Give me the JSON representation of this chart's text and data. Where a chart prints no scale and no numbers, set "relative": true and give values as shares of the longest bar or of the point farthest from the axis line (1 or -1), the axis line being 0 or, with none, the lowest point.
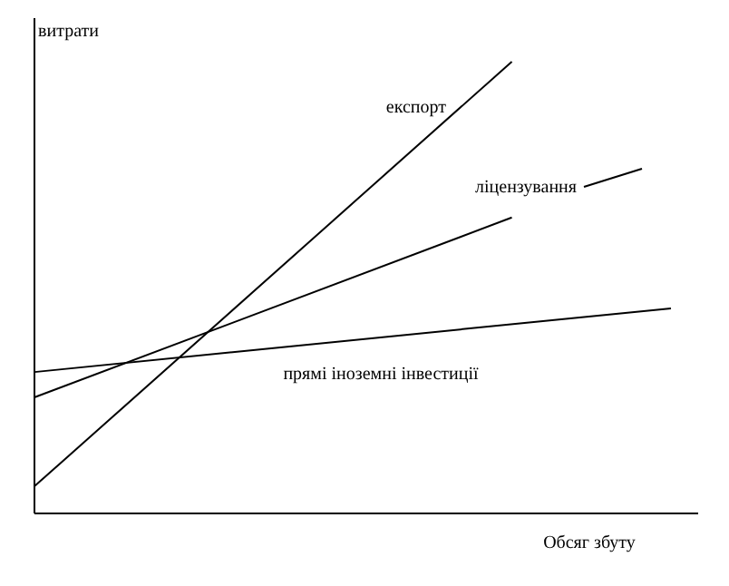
{
  "chart_data": {
    "type": "line",
    "relative": true,
    "ylabel": "витрати",
    "xlabel": "Обсяг збуту",
    "line_style": "solid",
    "marker": "none",
    "categories": [
      null,
      null,
      null,
      null,
      null,
      null,
      null,
      null,
      null,
      null,
      null,
      null,
      null,
      null,
      null,
      null,
      null,
      null,
      null,
      null,
      null,
      null,
      null,
      null,
      null
    ],
    "series": [
      {
        "name": "експорт",
        "color": "#000000",
        "values": [
          0.06,
          null,
          null,
          null,
          null,
          null,
          null,
          null,
          null,
          null,
          null,
          null,
          null,
          null,
          null,
          null,
          null,
          null,
          1,
          null,
          null,
          null,
          null,
          null,
          null
        ]
      },
      {
        "name": "ліцензування",
        "color": "#000000",
        "values": [
          0.257,
          null,
          null,
          null,
          null,
          null,
          null,
          null,
          null,
          null,
          null,
          null,
          null,
          null,
          null,
          null,
          null,
          null,
          0.655,
          null,
          null,
          null,
          null,
          null,
          null
        ]
      },
      {
        "name": "прямі іноземні інвестиції",
        "color": "#000000",
        "values": [
          0.313,
          null,
          null,
          null,
          null,
          null,
          null,
          null,
          null,
          null,
          null,
          null,
          null,
          null,
          null,
          null,
          null,
          null,
          null,
          null,
          null,
          null,
          null,
          null,
          0.454
        ]
      }
    ]
  }
}
